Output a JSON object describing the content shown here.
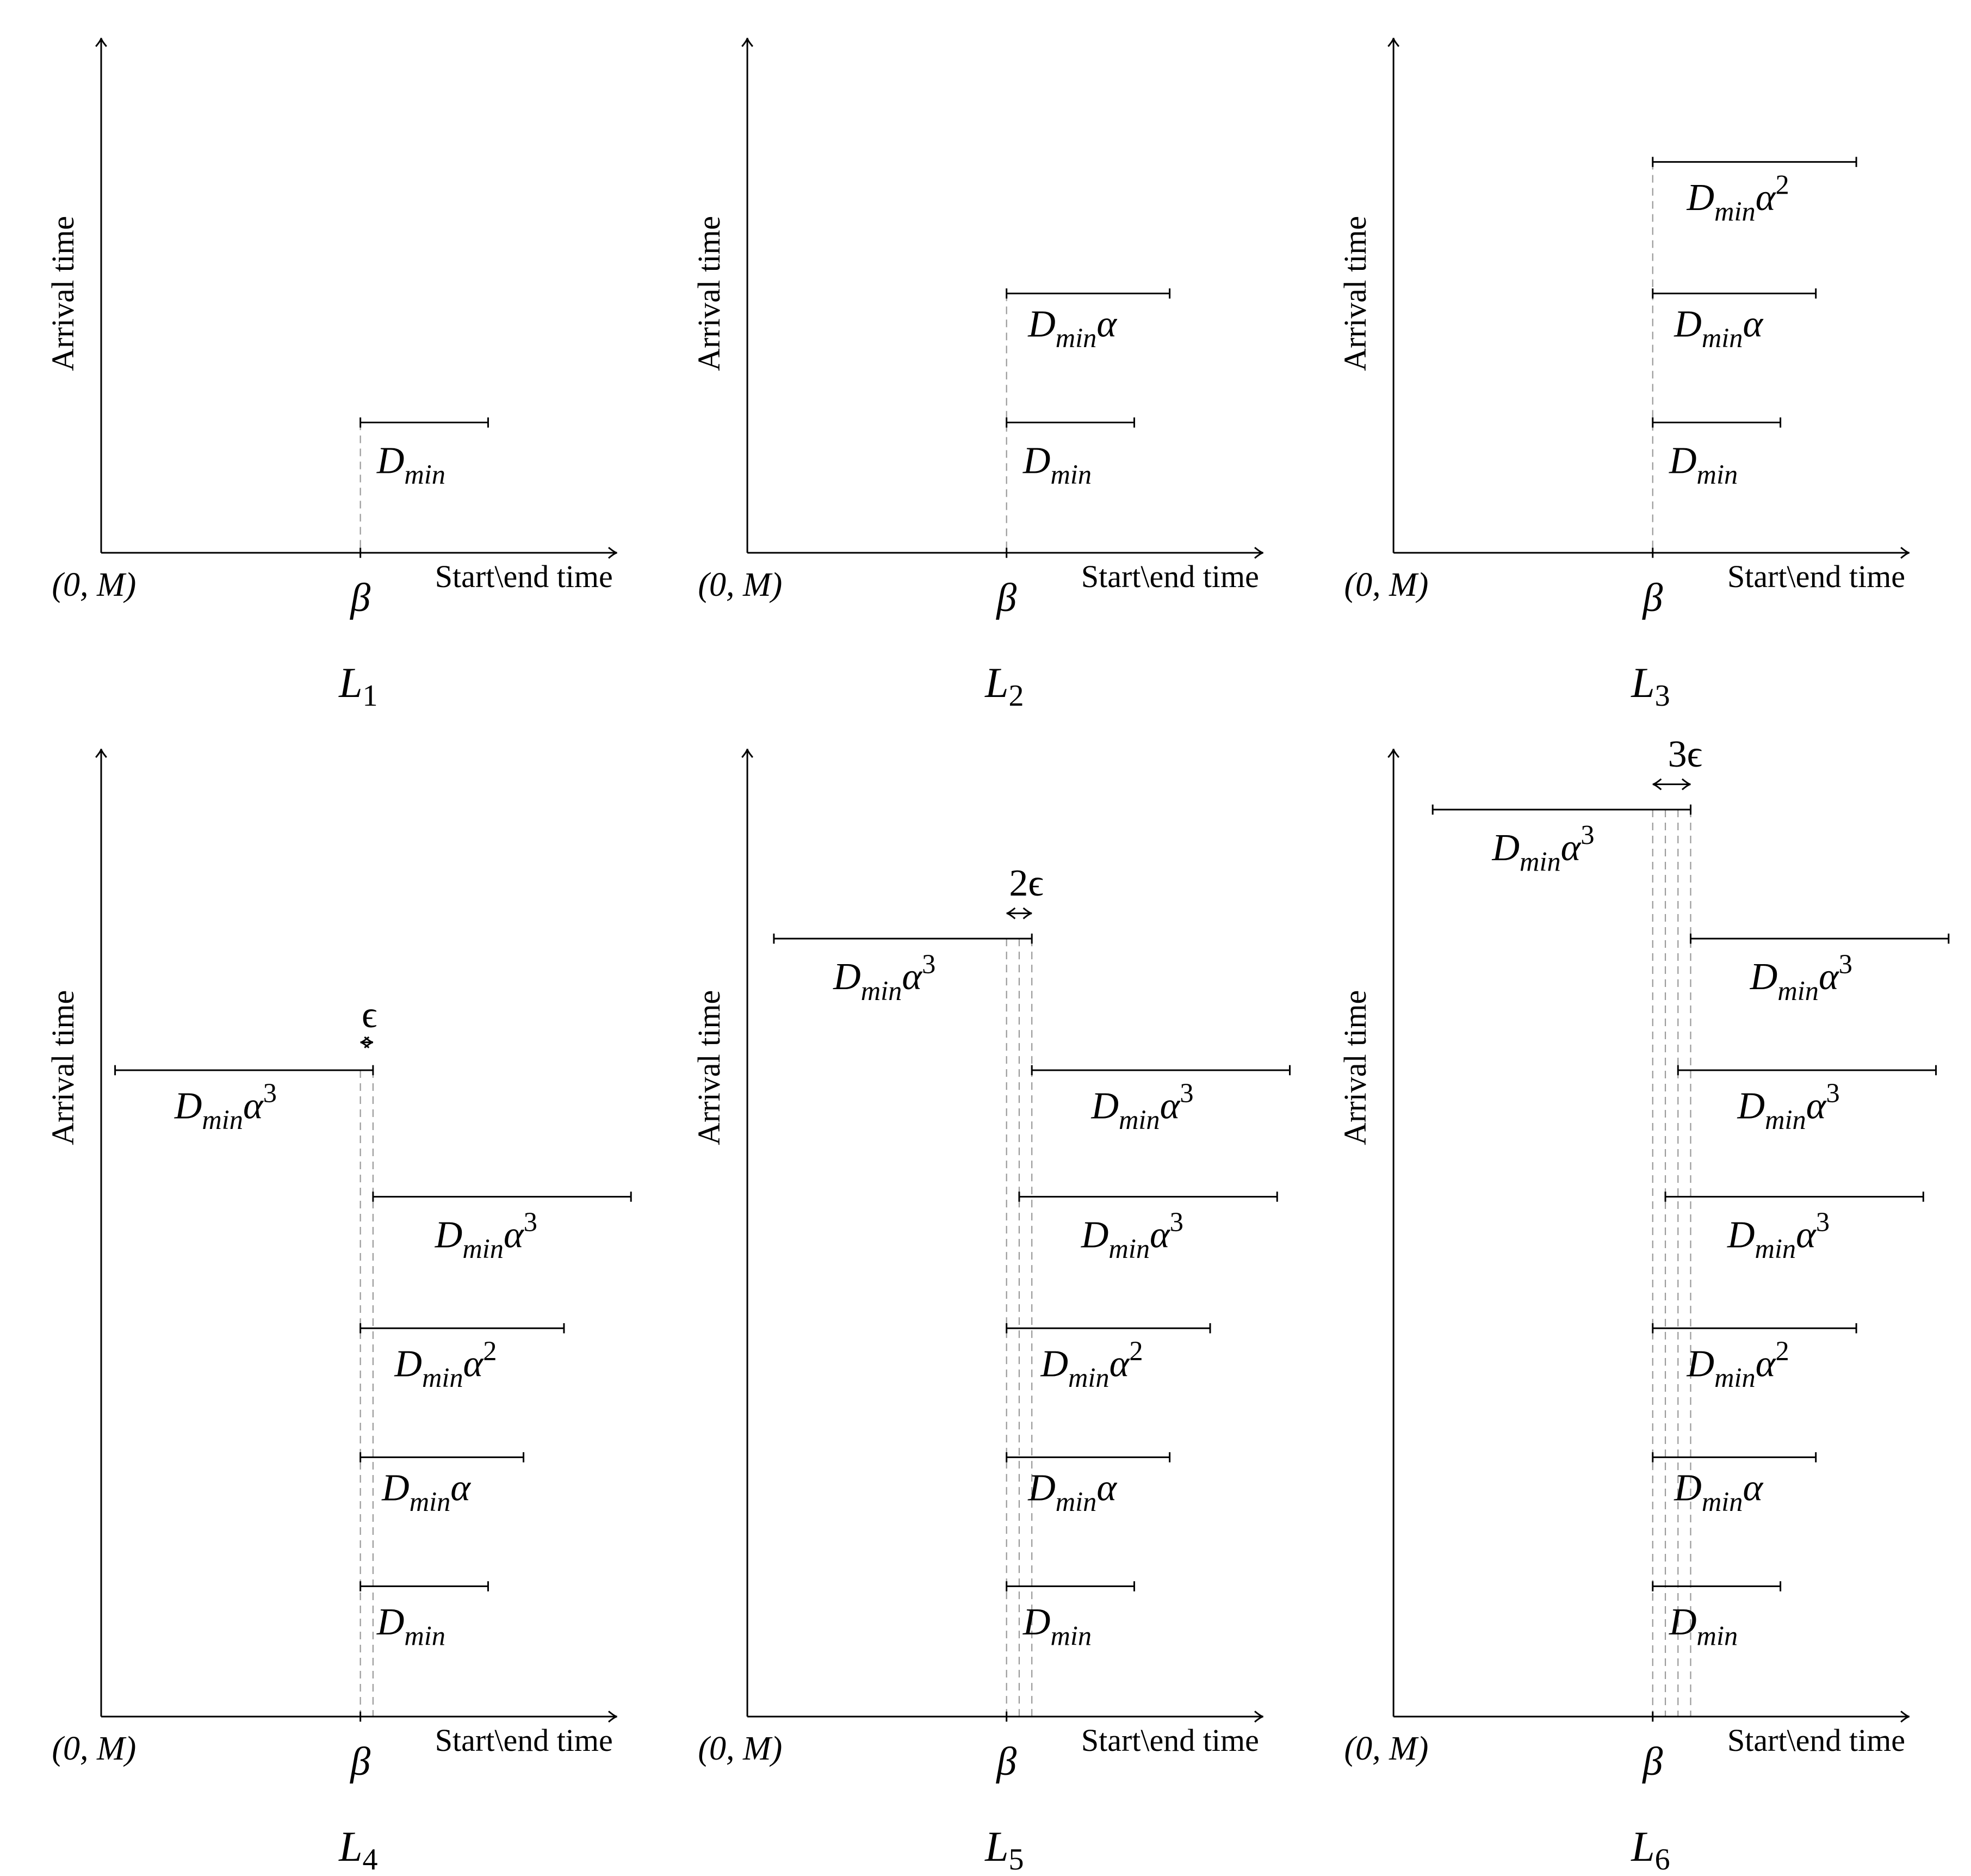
{
  "common": {
    "y_axis_label": "Arrival time",
    "x_axis_label": "Start\\end time",
    "origin_label": "(0, M)",
    "tick_label": "β"
  },
  "panels": [
    {
      "label": "L",
      "index": "1",
      "segments": [
        {
          "label_main": "D",
          "label_sub": "min",
          "label_rest": "",
          "label_sup": ""
        }
      ]
    },
    {
      "label": "L",
      "index": "2",
      "segments": [
        {
          "label_main": "D",
          "label_sub": "min",
          "label_rest": "",
          "label_sup": ""
        },
        {
          "label_main": "D",
          "label_sub": "min",
          "label_rest": "α",
          "label_sup": ""
        }
      ]
    },
    {
      "label": "L",
      "index": "3",
      "segments": [
        {
          "label_main": "D",
          "label_sub": "min",
          "label_rest": "",
          "label_sup": ""
        },
        {
          "label_main": "D",
          "label_sub": "min",
          "label_rest": "α",
          "label_sup": ""
        },
        {
          "label_main": "D",
          "label_sub": "min",
          "label_rest": "α",
          "label_sup": "2"
        }
      ]
    },
    {
      "label": "L",
      "index": "4",
      "gap_label": "ϵ",
      "segments": [
        {
          "label_main": "D",
          "label_sub": "min",
          "label_rest": "",
          "label_sup": ""
        },
        {
          "label_main": "D",
          "label_sub": "min",
          "label_rest": "α",
          "label_sup": ""
        },
        {
          "label_main": "D",
          "label_sub": "min",
          "label_rest": "α",
          "label_sup": "2"
        },
        {
          "label_main": "D",
          "label_sub": "min",
          "label_rest": "α",
          "label_sup": "3"
        },
        {
          "label_main": "D",
          "label_sub": "min",
          "label_rest": "α",
          "label_sup": "3"
        }
      ]
    },
    {
      "label": "L",
      "index": "5",
      "gap_label": "2ϵ",
      "segments": [
        {
          "label_main": "D",
          "label_sub": "min",
          "label_rest": "",
          "label_sup": ""
        },
        {
          "label_main": "D",
          "label_sub": "min",
          "label_rest": "α",
          "label_sup": ""
        },
        {
          "label_main": "D",
          "label_sub": "min",
          "label_rest": "α",
          "label_sup": "2"
        },
        {
          "label_main": "D",
          "label_sub": "min",
          "label_rest": "α",
          "label_sup": "3"
        },
        {
          "label_main": "D",
          "label_sub": "min",
          "label_rest": "α",
          "label_sup": "3"
        },
        {
          "label_main": "D",
          "label_sub": "min",
          "label_rest": "α",
          "label_sup": "3"
        }
      ]
    },
    {
      "label": "L",
      "index": "6",
      "gap_label": "3ϵ",
      "segments": [
        {
          "label_main": "D",
          "label_sub": "min",
          "label_rest": "",
          "label_sup": ""
        },
        {
          "label_main": "D",
          "label_sub": "min",
          "label_rest": "α",
          "label_sup": ""
        },
        {
          "label_main": "D",
          "label_sub": "min",
          "label_rest": "α",
          "label_sup": "2"
        },
        {
          "label_main": "D",
          "label_sub": "min",
          "label_rest": "α",
          "label_sup": "3"
        },
        {
          "label_main": "D",
          "label_sub": "min",
          "label_rest": "α",
          "label_sup": "3"
        },
        {
          "label_main": "D",
          "label_sub": "min",
          "label_rest": "α",
          "label_sup": "3"
        },
        {
          "label_main": "D",
          "label_sub": "min",
          "label_rest": "α",
          "label_sup": "3"
        }
      ]
    }
  ]
}
